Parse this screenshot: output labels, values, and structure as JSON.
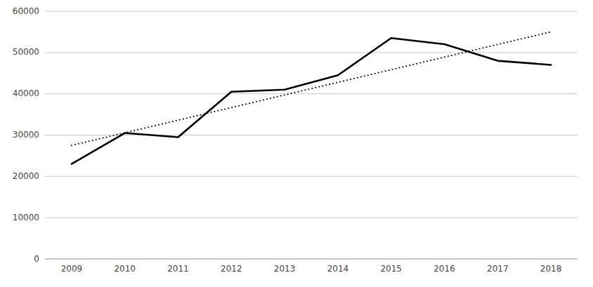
{
  "chart_data": {
    "type": "line",
    "x": [
      2009,
      2010,
      2011,
      2012,
      2013,
      2014,
      2015,
      2016,
      2017,
      2018
    ],
    "series": [
      {
        "values": [
          23000,
          30500,
          29500,
          40500,
          41000,
          44500,
          53500,
          52000,
          48000,
          47000
        ],
        "color": "#000000",
        "line_style": "solid"
      },
      {
        "x": [
          2009,
          2018
        ],
        "values": [
          27500,
          55000
        ],
        "color": "#000000",
        "line_style": "dotted"
      }
    ],
    "xlim": [
      2008.5,
      2018.5
    ],
    "xticks": [
      2009,
      2010,
      2011,
      2012,
      2013,
      2014,
      2015,
      2016,
      2017,
      2018
    ],
    "ylim": [
      0,
      60000
    ],
    "yticks": [
      0,
      10000,
      20000,
      30000,
      40000,
      50000,
      60000
    ],
    "grid": true
  }
}
